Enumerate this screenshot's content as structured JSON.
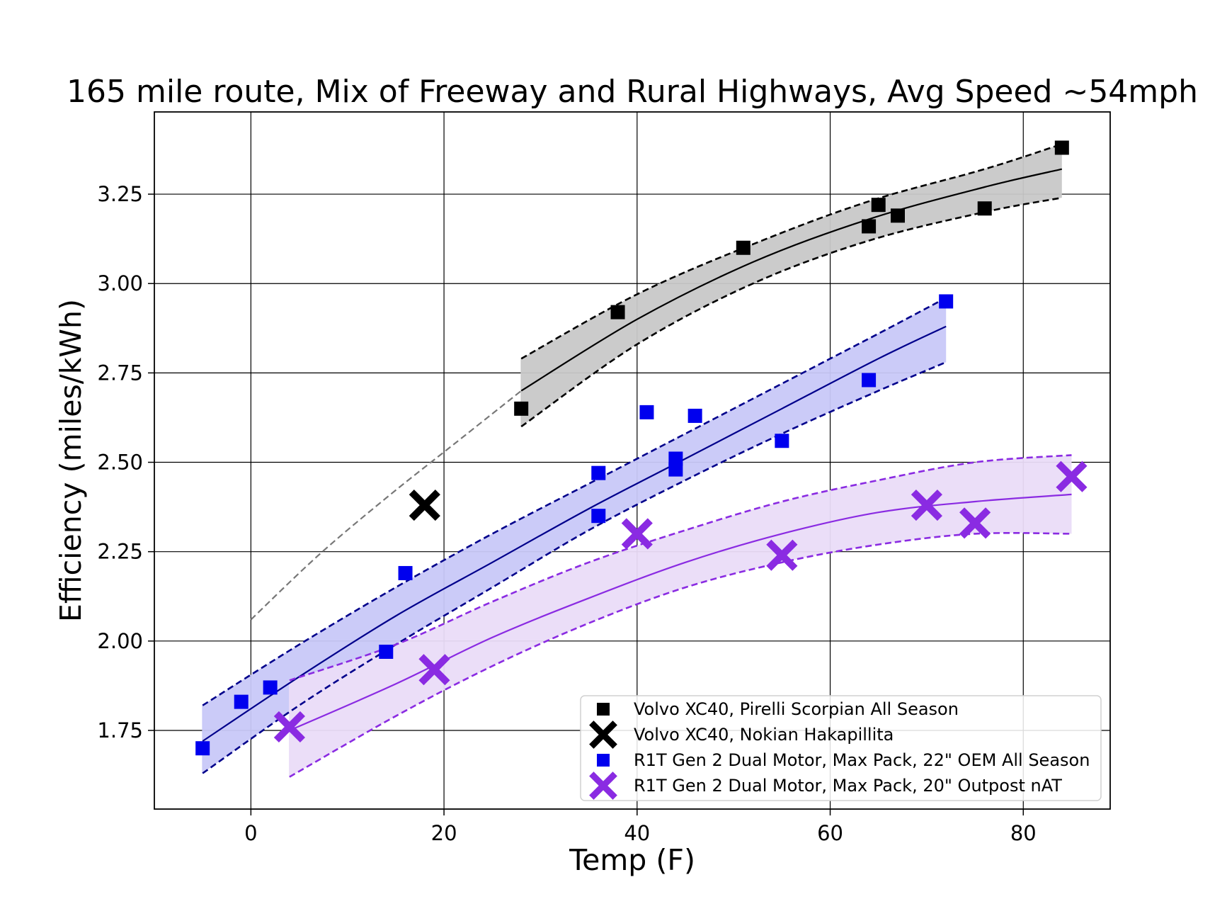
{
  "chart_data": {
    "type": "scatter",
    "title": "165 mile route, Mix of Freeway and Rural Highways, Avg Speed ~54mph",
    "xlabel": "Temp (F)",
    "ylabel": "Efficiency (miles/kWh)",
    "xlim": [
      -10,
      89
    ],
    "ylim": [
      1.53,
      3.48
    ],
    "xticks": [
      "0",
      "20",
      "40",
      "60",
      "80"
    ],
    "yticks": [
      "1.75",
      "2.00",
      "2.25",
      "2.50",
      "2.75",
      "3.00",
      "3.25"
    ],
    "grid": true,
    "legend_position": "lower-right",
    "series": [
      {
        "name": "Volvo XC40, Pirelli Scorpian All Season",
        "marker": "square",
        "color": "#000000",
        "x": [
          28,
          38,
          51,
          64,
          65,
          67,
          76,
          84
        ],
        "y": [
          2.65,
          2.92,
          3.1,
          3.16,
          3.22,
          3.19,
          3.21,
          3.38
        ]
      },
      {
        "name": "Volvo XC40, Nokian Hakapillita",
        "marker": "x",
        "color": "#000000",
        "x": [
          18
        ],
        "y": [
          2.38
        ]
      },
      {
        "name": "R1T Gen 2 Dual Motor, Max Pack, 22\" OEM All Season",
        "marker": "square",
        "color": "#0000ee",
        "x": [
          -5,
          -1,
          2,
          14,
          16,
          36,
          36,
          41,
          44,
          44,
          46,
          55,
          64,
          72
        ],
        "y": [
          1.7,
          1.83,
          1.87,
          1.97,
          2.19,
          2.35,
          2.47,
          2.64,
          2.48,
          2.51,
          2.63,
          2.56,
          2.73,
          2.95
        ]
      },
      {
        "name": "R1T Gen 2 Dual Motor, Max Pack, 20\" Outpost nAT",
        "marker": "x",
        "color": "#8a2be2",
        "x": [
          4,
          19,
          40,
          55,
          70,
          75,
          85
        ],
        "y": [
          1.76,
          1.92,
          2.3,
          2.24,
          2.38,
          2.33,
          2.46
        ]
      }
    ],
    "fits": [
      {
        "series": "Volvo XC40, Pirelli Scorpian All Season",
        "color": "#000000",
        "band_fill": "#c8c8c8",
        "x": [
          28,
          40,
          52,
          64,
          76,
          84
        ],
        "fit": [
          2.7,
          2.9,
          3.06,
          3.18,
          3.27,
          3.32
        ],
        "lower": [
          2.6,
          2.83,
          3.0,
          3.12,
          3.2,
          3.24
        ],
        "upper": [
          2.79,
          2.97,
          3.11,
          3.23,
          3.32,
          3.39
        ]
      },
      {
        "series": "Volvo XC40, Pirelli Scorpian All Season (extrapolation)",
        "color": "#777777",
        "x": [
          0,
          7,
          14,
          21,
          28
        ],
        "fit": [
          2.06,
          2.24,
          2.4,
          2.55,
          2.7
        ]
      },
      {
        "series": "R1T Gen 2 Dual Motor, Max Pack, 22\" OEM All Season",
        "color": "#00008b",
        "band_fill": "#c8c8f8",
        "x": [
          -5,
          5,
          15,
          25,
          35,
          45,
          55,
          65,
          72
        ],
        "fit": [
          1.72,
          1.9,
          2.07,
          2.22,
          2.37,
          2.51,
          2.65,
          2.79,
          2.88
        ],
        "lower": [
          1.63,
          1.82,
          1.99,
          2.15,
          2.31,
          2.45,
          2.58,
          2.7,
          2.78
        ],
        "upper": [
          1.82,
          1.99,
          2.15,
          2.3,
          2.44,
          2.58,
          2.72,
          2.86,
          2.96
        ]
      },
      {
        "series": "R1T Gen 2 Dual Motor, Max Pack, 20\" Outpost nAT",
        "color": "#8a2be2",
        "band_fill": "#eadcf8",
        "x": [
          4,
          15,
          25,
          35,
          45,
          55,
          65,
          75,
          85
        ],
        "fit": [
          1.75,
          1.88,
          2.01,
          2.12,
          2.22,
          2.3,
          2.36,
          2.39,
          2.41
        ],
        "lower": [
          1.62,
          1.79,
          1.93,
          2.05,
          2.15,
          2.22,
          2.27,
          2.3,
          2.3
        ],
        "upper": [
          1.89,
          1.99,
          2.11,
          2.22,
          2.31,
          2.39,
          2.45,
          2.5,
          2.52
        ]
      }
    ]
  }
}
